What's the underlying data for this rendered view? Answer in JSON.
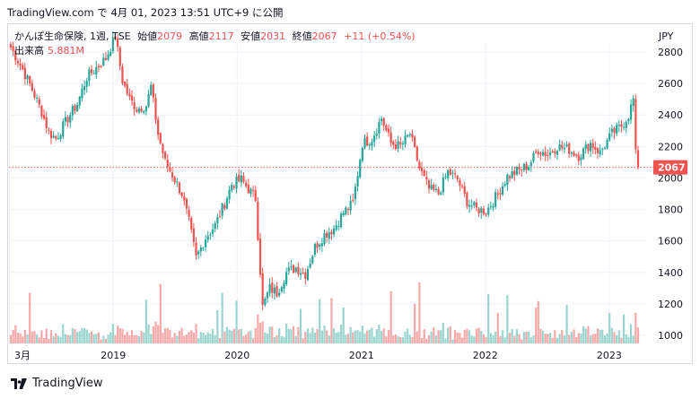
{
  "topbar": {
    "text": "TradingView.com で 4月 01, 2023 13:51 UTC+9 に公開"
  },
  "legend": {
    "symbol": "かんぽ生命保険, 1週, TSE",
    "open_label": "始値",
    "open": "2079",
    "high_label": "高値",
    "high": "2117",
    "low_label": "安値",
    "low": "2031",
    "close_label": "終値",
    "close": "2067",
    "change": "+11 (+0.54%)",
    "volume_label": "出来高",
    "volume": "5.881M"
  },
  "currency": "JPY",
  "footer": {
    "brand": "TradingView",
    "logo_icon": "tradingview-logo-icon"
  },
  "chart_data": {
    "type": "candlestick",
    "timeframe": "weekly",
    "y_ticks": [
      1000,
      1200,
      1400,
      1600,
      1800,
      2000,
      2200,
      2400,
      2600,
      2800
    ],
    "x_ticks": [
      "3月",
      "2019",
      "2020",
      "2021",
      "2022",
      "2023"
    ],
    "ylim": [
      920,
      3000
    ],
    "last_price": 2067,
    "last_price_label": "2067",
    "grid": true,
    "colors": {
      "up": "#26a69a",
      "down": "#ef5350",
      "up_volume": "#9bd5cf",
      "down_volume": "#f5a9a8",
      "grid": "#f0f3fa"
    },
    "price_path": [
      [
        "2018-03-05",
        2830
      ],
      [
        "2018-04-09",
        2690
      ],
      [
        "2018-05-07",
        2560
      ],
      [
        "2018-06-04",
        2420
      ],
      [
        "2018-06-25",
        2290
      ],
      [
        "2018-07-16",
        2250
      ],
      [
        "2018-08-20",
        2380
      ],
      [
        "2018-09-17",
        2470
      ],
      [
        "2018-10-15",
        2640
      ],
      [
        "2018-11-12",
        2700
      ],
      [
        "2018-12-10",
        2760
      ],
      [
        "2019-01-07",
        2900
      ],
      [
        "2019-01-28",
        2620
      ],
      [
        "2019-02-18",
        2500
      ],
      [
        "2019-03-11",
        2440
      ],
      [
        "2019-04-08",
        2460
      ],
      [
        "2019-04-22",
        2580
      ],
      [
        "2019-05-13",
        2280
      ],
      [
        "2019-06-03",
        2100
      ],
      [
        "2019-06-24",
        2020
      ],
      [
        "2019-07-22",
        1900
      ],
      [
        "2019-08-12",
        1720
      ],
      [
        "2019-09-02",
        1490
      ],
      [
        "2019-09-30",
        1620
      ],
      [
        "2019-10-28",
        1700
      ],
      [
        "2019-11-25",
        1840
      ],
      [
        "2019-12-16",
        1960
      ],
      [
        "2020-01-13",
        1990
      ],
      [
        "2020-02-03",
        1930
      ],
      [
        "2020-02-24",
        1870
      ],
      [
        "2020-03-16",
        1180
      ],
      [
        "2020-04-06",
        1300
      ],
      [
        "2020-04-27",
        1270
      ],
      [
        "2020-05-25",
        1400
      ],
      [
        "2020-06-22",
        1430
      ],
      [
        "2020-07-20",
        1390
      ],
      [
        "2020-08-17",
        1560
      ],
      [
        "2020-09-14",
        1640
      ],
      [
        "2020-10-12",
        1680
      ],
      [
        "2020-11-09",
        1780
      ],
      [
        "2020-12-07",
        1840
      ],
      [
        "2021-01-04",
        2220
      ],
      [
        "2021-02-01",
        2250
      ],
      [
        "2021-03-01",
        2380
      ],
      [
        "2021-03-29",
        2220
      ],
      [
        "2021-04-26",
        2200
      ],
      [
        "2021-05-24",
        2280
      ],
      [
        "2021-06-21",
        2060
      ],
      [
        "2021-07-19",
        1930
      ],
      [
        "2021-08-16",
        1900
      ],
      [
        "2021-09-13",
        2040
      ],
      [
        "2021-10-11",
        1990
      ],
      [
        "2021-11-08",
        1850
      ],
      [
        "2021-12-06",
        1800
      ],
      [
        "2022-01-04",
        1790
      ],
      [
        "2022-02-07",
        1900
      ],
      [
        "2022-03-07",
        2010
      ],
      [
        "2022-04-04",
        2040
      ],
      [
        "2022-05-09",
        2080
      ],
      [
        "2022-06-06",
        2180
      ],
      [
        "2022-07-04",
        2150
      ],
      [
        "2022-08-01",
        2200
      ],
      [
        "2022-09-05",
        2180
      ],
      [
        "2022-10-03",
        2140
      ],
      [
        "2022-11-07",
        2220
      ],
      [
        "2022-12-05",
        2160
      ],
      [
        "2023-01-09",
        2280
      ],
      [
        "2023-02-06",
        2330
      ],
      [
        "2023-02-27",
        2400
      ],
      [
        "2023-03-13",
        2500
      ],
      [
        "2023-03-20",
        2150
      ],
      [
        "2023-03-27",
        2067
      ]
    ]
  }
}
